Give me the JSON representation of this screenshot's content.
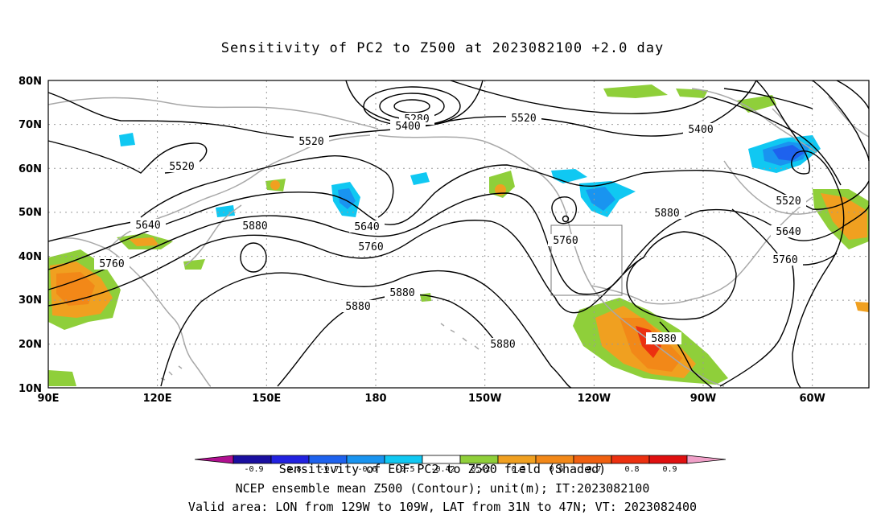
{
  "title": "Sensitivity of PC2 to Z500 at 2023082100 +2.0 day",
  "axes": {
    "lat_labels": [
      "80N",
      "70N",
      "60N",
      "50N",
      "40N",
      "30N",
      "20N",
      "10N"
    ],
    "lon_labels": [
      "90E",
      "120E",
      "150E",
      "180",
      "150W",
      "120W",
      "90W",
      "60W"
    ]
  },
  "contour_labels": [
    "5280",
    "5400",
    "5520",
    "5400",
    "5520",
    "5520",
    "5640",
    "5640",
    "5520",
    "5760",
    "5880",
    "5760",
    "5880",
    "5640",
    "5760",
    "5880",
    "5880",
    "5880",
    "5760",
    "5880"
  ],
  "colorbar": {
    "ticks": [
      "-0.9",
      "-0.8",
      "-0.7",
      "-0.6",
      "-0.5",
      "-0.42",
      "0.42",
      "0.5",
      "0.6",
      "0.7",
      "0.8",
      "0.9"
    ],
    "colors": [
      "#1a0fa0",
      "#2222e0",
      "#1e62ee",
      "#1994f0",
      "#10c8f2",
      "#ffffff",
      "#8fcf3a",
      "#f0a020",
      "#f28818",
      "#f06010",
      "#ec3010",
      "#e01010"
    ],
    "left_tip": "#b01090",
    "right_tip": "#f0a0c8"
  },
  "captions": {
    "line1": "Sensitivity of EOF PC2 to Z500 field (Shaded)",
    "line2": "NCEP ensemble mean Z500 (Contour); unit(m); IT:2023082100",
    "line3": "Valid area: LON from 129W to 109W, LAT from 31N to 47N; VT: 2023082400"
  }
}
